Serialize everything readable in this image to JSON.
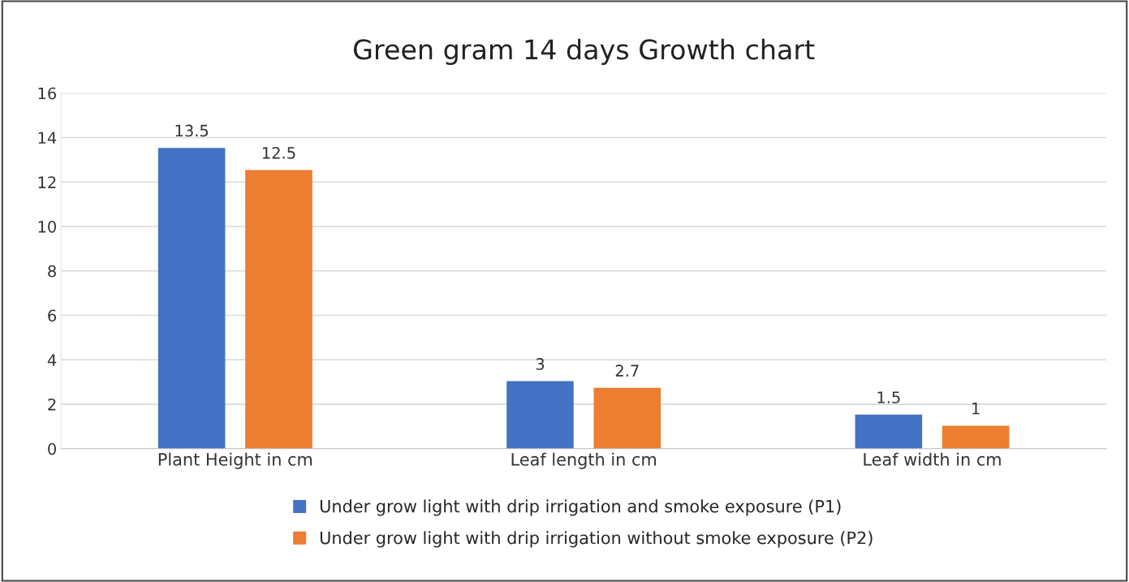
{
  "chart_data": {
    "type": "bar",
    "title": "Green gram 14 days Growth chart",
    "categories": [
      "Plant Height in cm",
      "Leaf length in cm",
      "Leaf width in cm"
    ],
    "series": [
      {
        "name": "Under grow light with drip irrigation and smoke exposure (P1)",
        "color": "#4472c4",
        "values": [
          13.5,
          3,
          1.5
        ]
      },
      {
        "name": "Under grow light with drip irrigation without smoke exposure (P2)",
        "color": "#ed7d31",
        "values": [
          12.5,
          2.7,
          1
        ]
      }
    ],
    "ylim": [
      0,
      16
    ],
    "yticks": [
      0,
      2,
      4,
      6,
      8,
      10,
      12,
      14,
      16
    ],
    "grid": "y",
    "legend": "bottom",
    "data_labels": true
  }
}
